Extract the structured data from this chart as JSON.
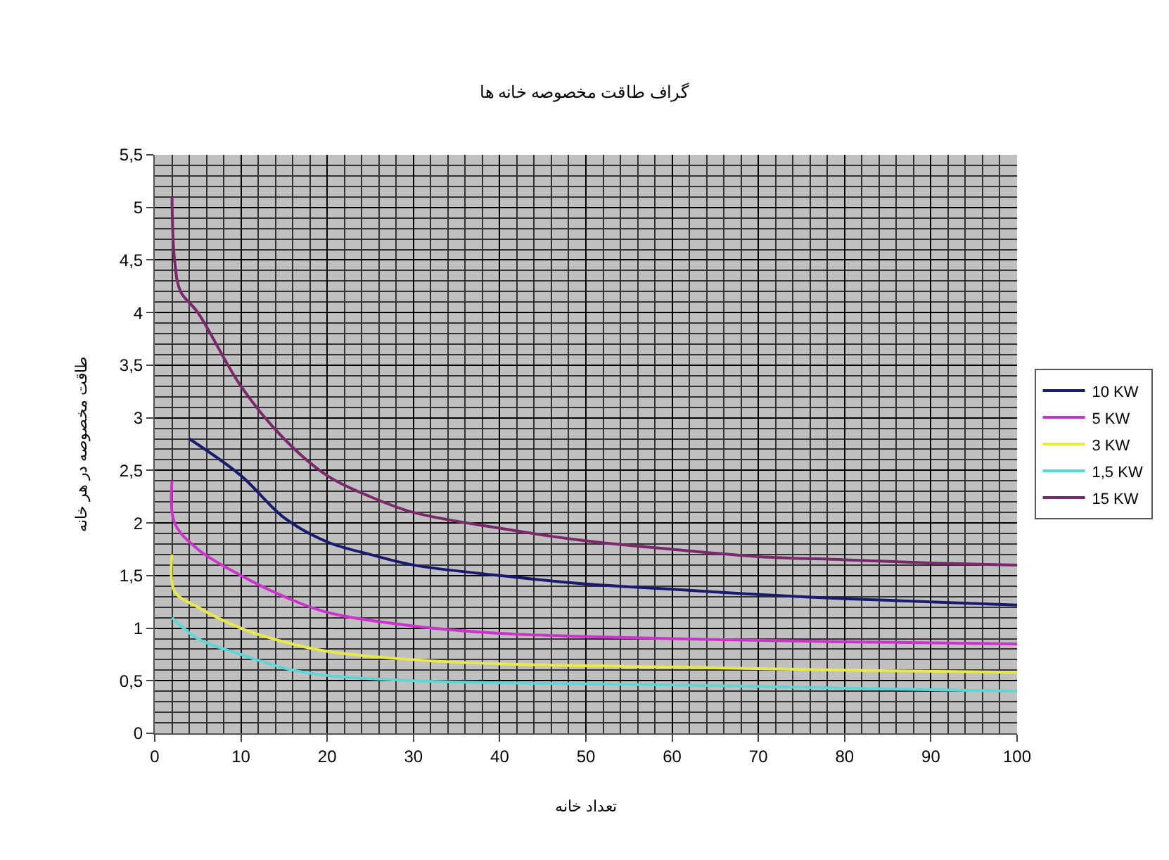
{
  "chart_data": {
    "type": "line",
    "title": "گراف طاقت مخصوصه خانه ها",
    "xlabel": "تعداد خانه",
    "ylabel": "طاقت مخصوصه در هر خانه",
    "xlim": [
      0,
      100
    ],
    "xticks": [
      0,
      10,
      20,
      30,
      40,
      50,
      60,
      70,
      80,
      90,
      100
    ],
    "ylim": [
      0,
      5.5
    ],
    "yticks": [
      0,
      {
        "value": 0.5,
        "label": "0,5"
      },
      1,
      {
        "value": 1.5,
        "label": "1,5"
      },
      2,
      {
        "value": 2.5,
        "label": "2,5"
      },
      3,
      {
        "value": 3.5,
        "label": "3,5"
      },
      4,
      {
        "value": 4.5,
        "label": "4,5"
      },
      5,
      {
        "value": 5.5,
        "label": "5,5"
      }
    ],
    "grid": true,
    "legend": "right",
    "marker": "none",
    "line_style": "solid",
    "series": [
      {
        "name": "10 KW",
        "color": "#1a1a6e",
        "x": [
          4,
          10,
          15,
          20,
          25,
          30,
          40,
          50,
          60,
          70,
          80,
          90,
          100
        ],
        "values": [
          2.8,
          2.45,
          2.05,
          1.82,
          1.7,
          1.6,
          1.5,
          1.42,
          1.37,
          1.32,
          1.28,
          1.25,
          1.22
        ]
      },
      {
        "name": "5 KW",
        "color": "#cc33cc",
        "x": [
          2,
          2.3,
          5,
          10,
          15,
          20,
          30,
          40,
          50,
          60,
          80,
          100
        ],
        "values": [
          2.4,
          2.0,
          1.75,
          1.5,
          1.3,
          1.15,
          1.02,
          0.95,
          0.92,
          0.9,
          0.87,
          0.85
        ]
      },
      {
        "name": "3 KW",
        "color": "#e8e84a",
        "x": [
          2,
          2.3,
          5,
          10,
          15,
          20,
          30,
          40,
          60,
          80,
          100
        ],
        "values": [
          1.7,
          1.35,
          1.2,
          1.0,
          0.87,
          0.78,
          0.7,
          0.66,
          0.63,
          0.6,
          0.58
        ]
      },
      {
        "name": "1,5 KW",
        "color": "#5fd6d6",
        "x": [
          2,
          5,
          10,
          15,
          20,
          30,
          40,
          60,
          80,
          100
        ],
        "values": [
          1.1,
          0.9,
          0.75,
          0.62,
          0.55,
          0.5,
          0.48,
          0.46,
          0.43,
          0.4
        ]
      },
      {
        "name": "15 KW",
        "color": "#7a2a6a",
        "x": [
          2,
          2.3,
          3,
          5,
          10,
          15,
          20,
          25,
          30,
          40,
          50,
          60,
          70,
          80,
          90,
          100
        ],
        "values": [
          5.1,
          4.5,
          4.2,
          4.0,
          3.3,
          2.8,
          2.45,
          2.25,
          2.1,
          1.95,
          1.83,
          1.75,
          1.68,
          1.65,
          1.62,
          1.6
        ]
      }
    ]
  }
}
